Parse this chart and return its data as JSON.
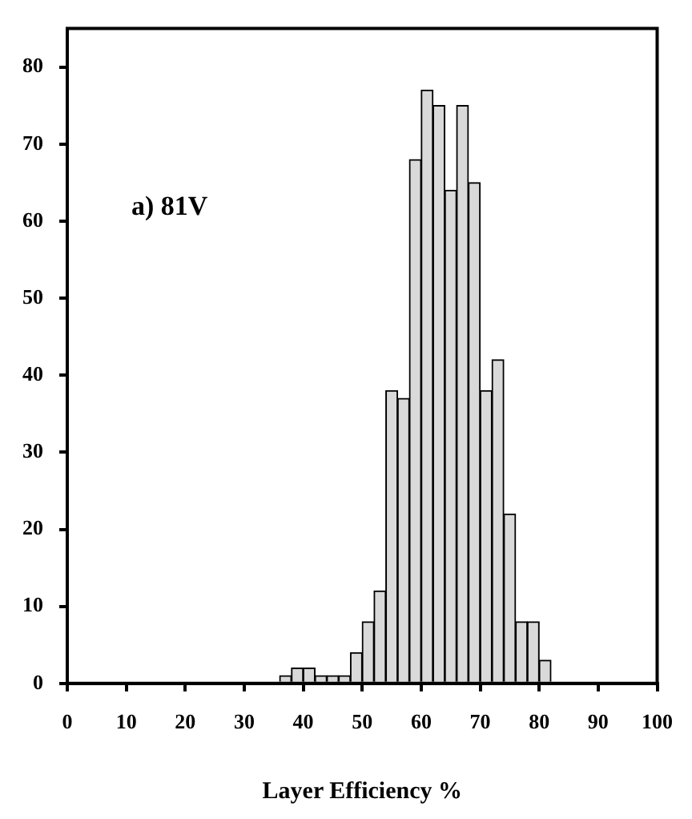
{
  "chart_data": {
    "type": "histogram",
    "xlabel": "Layer Efficiency %",
    "bins": [
      36,
      38,
      40,
      42,
      44,
      46,
      48,
      50,
      52,
      54,
      56,
      58,
      60,
      62,
      64,
      66,
      68,
      70,
      72,
      74,
      76,
      78,
      80,
      82
    ],
    "values": [
      1,
      2,
      2,
      1,
      1,
      1,
      4,
      8,
      12,
      38,
      37,
      68,
      77,
      75,
      64,
      75,
      65,
      38,
      42,
      22,
      8,
      8,
      3
    ],
    "color": "#d9d9d9",
    "xlim": [
      0,
      100
    ],
    "xticks": [
      0,
      10,
      20,
      30,
      40,
      50,
      60,
      70,
      80,
      90,
      100
    ],
    "ylim": [
      0,
      85
    ],
    "yticks": [
      0,
      10,
      20,
      30,
      40,
      50,
      60,
      70,
      80
    ],
    "grid": false,
    "legend": false,
    "annotations": [
      "a) 81V"
    ]
  }
}
